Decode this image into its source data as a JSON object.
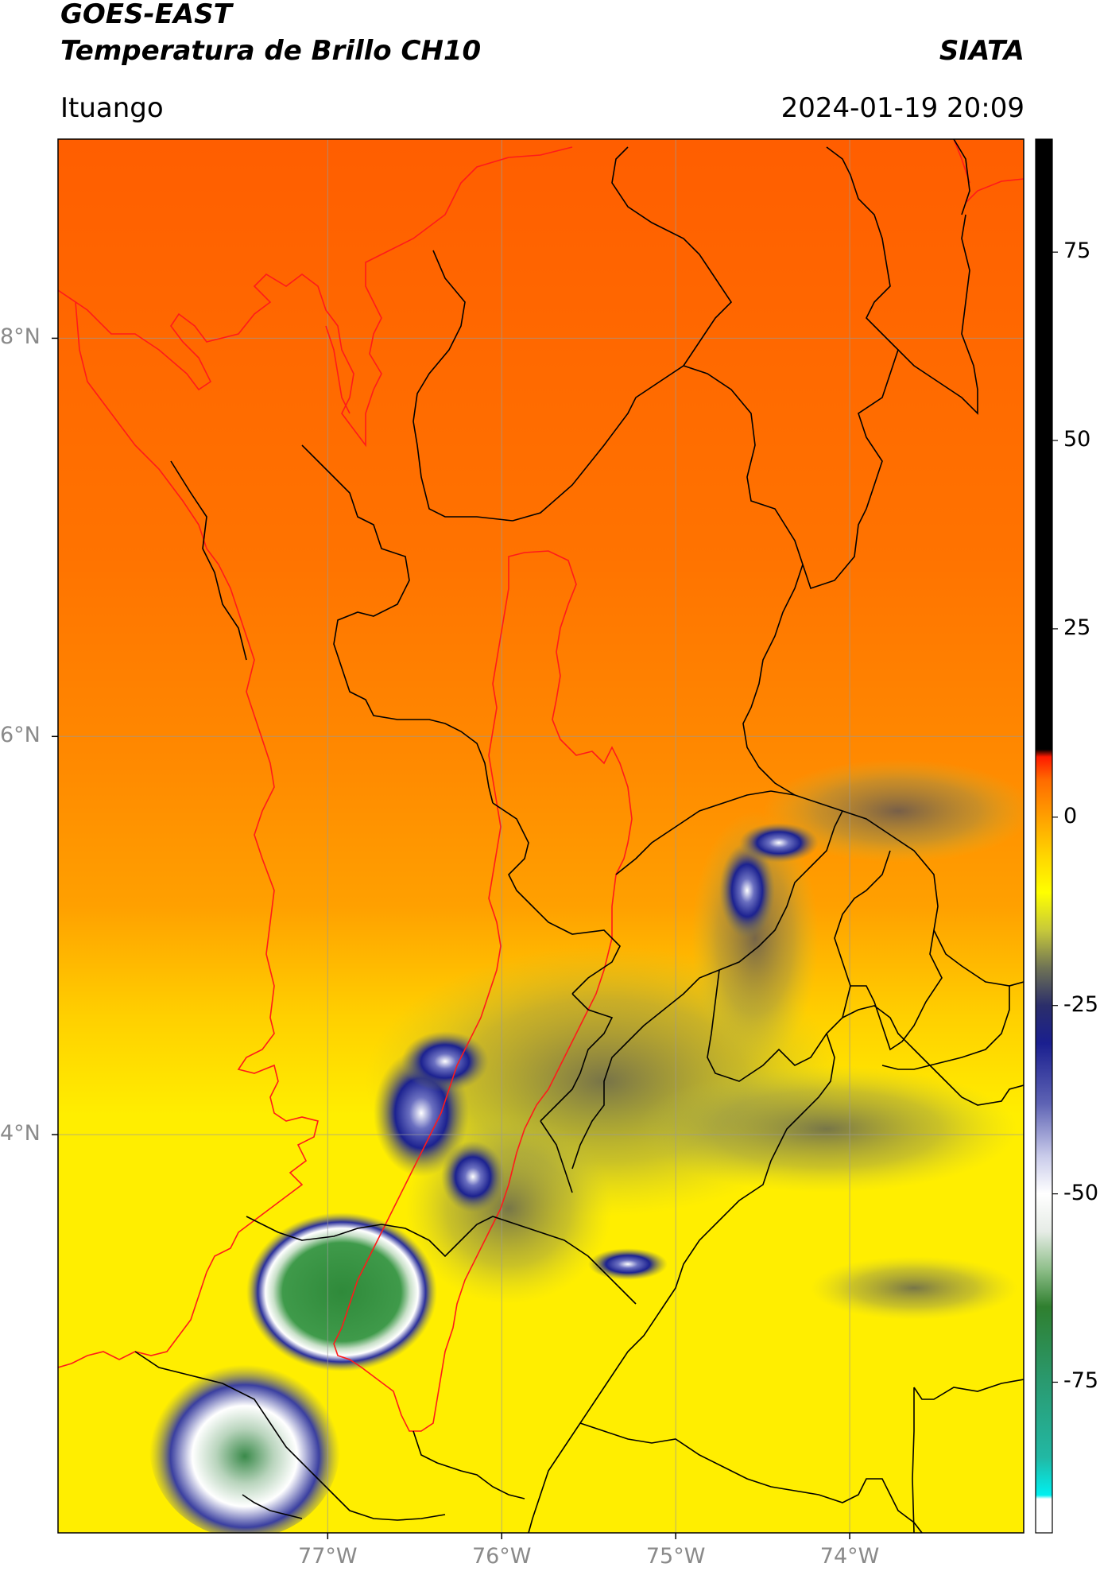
{
  "header": {
    "title_line1": "GOES-EAST",
    "title_line2": "Temperatura de Brillo CH10",
    "brand": "SIATA",
    "location": "Ituango",
    "datetime": "2024-01-19 20:09"
  },
  "map": {
    "projection": "lat-lon",
    "lon_range": [
      -78.55,
      -73.0
    ],
    "lat_range": [
      2.0,
      9.0
    ],
    "gridlines": true,
    "lon_ticks": [
      {
        "value": -77,
        "label": "77°W"
      },
      {
        "value": -76,
        "label": "76°W"
      },
      {
        "value": -75,
        "label": "75°W"
      },
      {
        "value": -74,
        "label": "74°W"
      }
    ],
    "lat_ticks": [
      {
        "value": 8,
        "label": "8°N"
      },
      {
        "value": 6,
        "label": "6°N"
      },
      {
        "value": 4,
        "label": "4°N"
      }
    ],
    "boundary_colors": {
      "departments": "#000000",
      "coast_and_basin": "#ff1a1a"
    }
  },
  "colorbar": {
    "range": [
      -95,
      90
    ],
    "ticks": [
      {
        "value": 75,
        "label": "75"
      },
      {
        "value": 50,
        "label": "50"
      },
      {
        "value": 25,
        "label": "25"
      },
      {
        "value": 0,
        "label": "0"
      },
      {
        "value": -25,
        "label": "-25"
      },
      {
        "value": -50,
        "label": "-50"
      },
      {
        "value": -75,
        "label": "-75"
      }
    ],
    "stops": [
      {
        "value": -95,
        "color": "#ffffff"
      },
      {
        "value": -90.5,
        "color": "#ffffff"
      },
      {
        "value": -90,
        "color": "#00f0f0"
      },
      {
        "value": -85,
        "color": "#22b8a4"
      },
      {
        "value": -75,
        "color": "#2a9a70"
      },
      {
        "value": -65,
        "color": "#2f7f2f"
      },
      {
        "value": -60,
        "color": "#8fbf8a"
      },
      {
        "value": -55,
        "color": "#e6ece6"
      },
      {
        "value": -50,
        "color": "#ffffff"
      },
      {
        "value": -45,
        "color": "#c9cbea"
      },
      {
        "value": -38,
        "color": "#5e63b4"
      },
      {
        "value": -30,
        "color": "#1a1f8f"
      },
      {
        "value": -25,
        "color": "#2b2e6a"
      },
      {
        "value": -20,
        "color": "#6f7355"
      },
      {
        "value": -15,
        "color": "#c7c93a"
      },
      {
        "value": -10,
        "color": "#ffff00"
      },
      {
        "value": -5,
        "color": "#ffd400"
      },
      {
        "value": 0,
        "color": "#ffa000"
      },
      {
        "value": 5,
        "color": "#ff6a00"
      },
      {
        "value": 8,
        "color": "#ff1a00"
      },
      {
        "value": 9,
        "color": "#000000"
      },
      {
        "value": 90,
        "color": "#000000"
      }
    ]
  }
}
